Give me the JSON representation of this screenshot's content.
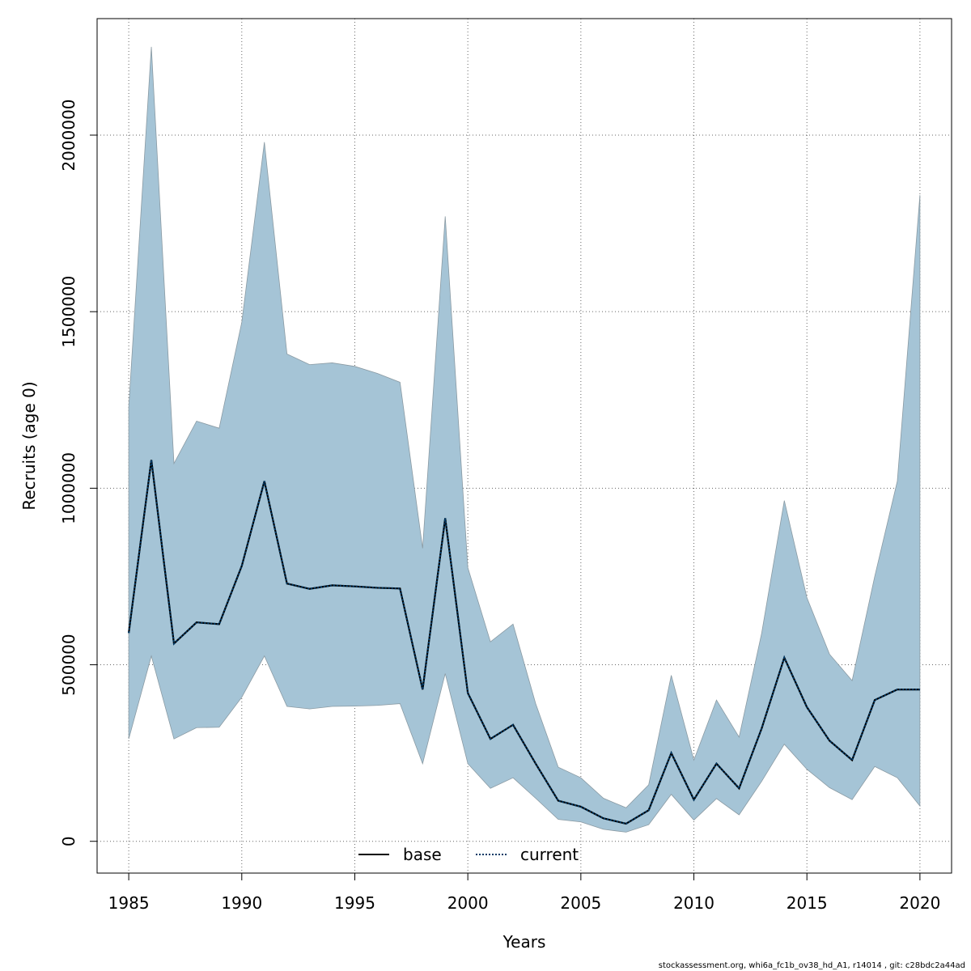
{
  "chart_data": {
    "type": "area",
    "xlabel": "Years",
    "ylabel": "Recruits (age 0)",
    "xlim": [
      1983.6,
      2021.4
    ],
    "ylim": [
      -90000,
      2330000
    ],
    "x_ticks": [
      1985,
      1990,
      1995,
      2000,
      2005,
      2010,
      2015,
      2020
    ],
    "y_ticks": [
      0,
      500000,
      1000000,
      1500000,
      2000000
    ],
    "grid": true,
    "legend": {
      "position": "bottom-center",
      "entries": [
        "base",
        "current"
      ]
    },
    "colors": {
      "band": "#a5c4d6",
      "band_edge": "#8a9aa3",
      "current_line": "#003a66",
      "grid": "#666666"
    },
    "x": [
      1985,
      1986,
      1987,
      1988,
      1989,
      1990,
      1991,
      1992,
      1993,
      1994,
      1995,
      1996,
      1997,
      1998,
      1999,
      2000,
      2001,
      2002,
      2003,
      2004,
      2005,
      2006,
      2007,
      2008,
      2009,
      2010,
      2011,
      2012,
      2013,
      2014,
      2015,
      2016,
      2017,
      2018,
      2019,
      2020
    ],
    "series": [
      {
        "name": "current",
        "style": "dotted",
        "values": [
          590000,
          1080000,
          560000,
          620000,
          615000,
          780000,
          1020000,
          730000,
          715000,
          725000,
          722000,
          718000,
          716000,
          430000,
          915000,
          420000,
          290000,
          330000,
          220000,
          115000,
          98000,
          65000,
          50000,
          88000,
          250000,
          118000,
          220000,
          150000,
          320000,
          520000,
          380000,
          285000,
          230000,
          400000,
          430000,
          430000
        ]
      }
    ],
    "band": {
      "lower": [
        290000,
        525000,
        290000,
        322000,
        323000,
        408000,
        525000,
        382000,
        375000,
        382000,
        383000,
        385000,
        390000,
        220000,
        475000,
        220000,
        150000,
        180000,
        122000,
        62000,
        55000,
        34000,
        26000,
        47000,
        133000,
        60000,
        121000,
        75000,
        170000,
        275000,
        204000,
        152000,
        118000,
        212000,
        180000,
        100000
      ],
      "upper": [
        1230000,
        2250000,
        1070000,
        1190000,
        1170000,
        1470000,
        1980000,
        1380000,
        1350000,
        1355000,
        1345000,
        1325000,
        1300000,
        830000,
        1770000,
        775000,
        565000,
        615000,
        390000,
        210000,
        180000,
        122000,
        95000,
        160000,
        470000,
        230000,
        400000,
        295000,
        590000,
        965000,
        690000,
        530000,
        455000,
        750000,
        1020000,
        1830000
      ]
    },
    "footer": "stockassessment.org, whi6a_fc1b_ov38_hd_A1, r14014 , git: c28bdc2a44ad"
  }
}
